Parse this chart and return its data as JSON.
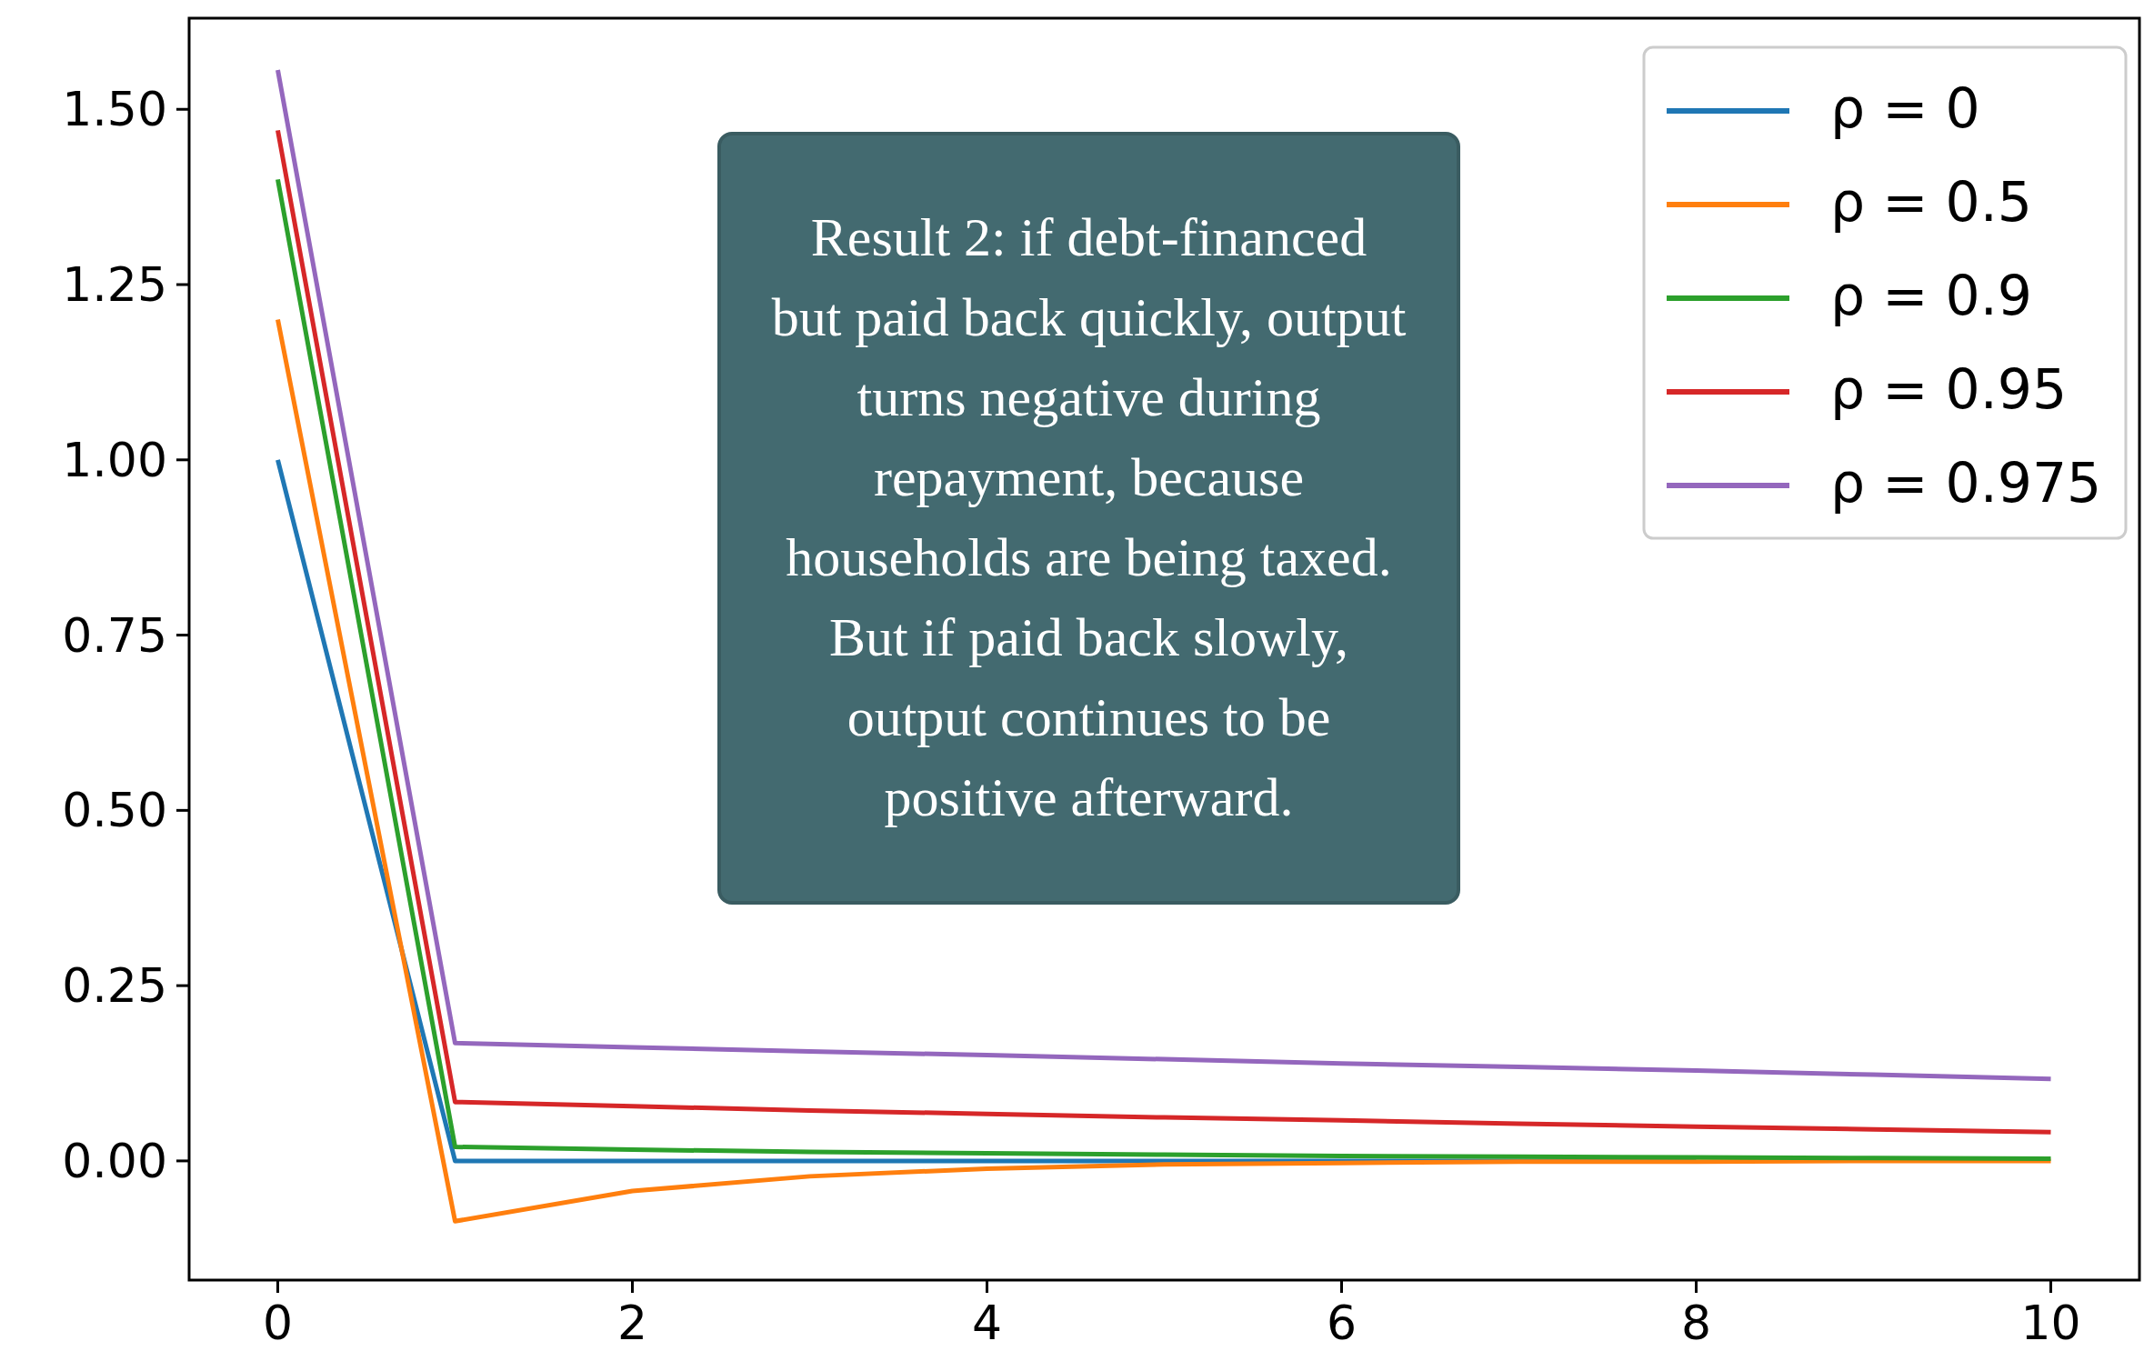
{
  "chart_data": {
    "type": "line",
    "x": [
      0,
      1,
      2,
      3,
      4,
      5,
      6,
      7,
      8,
      9,
      10
    ],
    "series": [
      {
        "name": "ρ = 0",
        "color": "#1f77b4",
        "values": [
          1.0,
          0,
          0,
          0,
          0,
          0,
          0,
          0,
          0,
          null,
          null
        ]
      },
      {
        "name": "ρ = 0.5",
        "color": "#ff7f0e",
        "values": [
          1.2,
          -0.086,
          -0.043,
          -0.022,
          -0.011,
          -0.005,
          -0.003,
          -0.001,
          -0.001,
          0,
          0
        ]
      },
      {
        "name": "ρ = 0.9",
        "color": "#2ca02c",
        "values": [
          1.4,
          0.02,
          0.016,
          0.013,
          0.011,
          0.009,
          0.007,
          0.006,
          0.005,
          0.004,
          0.003
        ]
      },
      {
        "name": "ρ = 0.95",
        "color": "#d62728",
        "values": [
          1.47,
          0.084,
          0.078,
          0.072,
          0.067,
          0.062,
          0.058,
          0.053,
          0.049,
          0.045,
          0.041
        ]
      },
      {
        "name": "ρ = 0.975",
        "color": "#9467bd",
        "values": [
          1.556,
          0.168,
          0.162,
          0.156,
          0.151,
          0.145,
          0.139,
          0.134,
          0.129,
          0.123,
          0.117
        ]
      }
    ],
    "xlim": [
      -0.5,
      10.5
    ],
    "ylim": [
      -0.17,
      1.63
    ],
    "xticks": [
      0,
      2,
      4,
      6,
      8,
      10
    ],
    "yticks": [
      {
        "value": 0,
        "label": "0.00"
      },
      {
        "value": 0.25,
        "label": "0.25"
      },
      {
        "value": 0.5,
        "label": "0.50"
      },
      {
        "value": 0.75,
        "label": "0.75"
      },
      {
        "value": 1,
        "label": "1.00"
      },
      {
        "value": 1.25,
        "label": "1.25"
      },
      {
        "value": 1.5,
        "label": "1.50"
      }
    ],
    "legend": "top right",
    "grid": false,
    "annotations": [
      "Result 2: if debt-financed but paid back quickly, output turns negative during repayment, because households are being taxed. But if paid back slowly, output continues to be positive afterward."
    ]
  }
}
